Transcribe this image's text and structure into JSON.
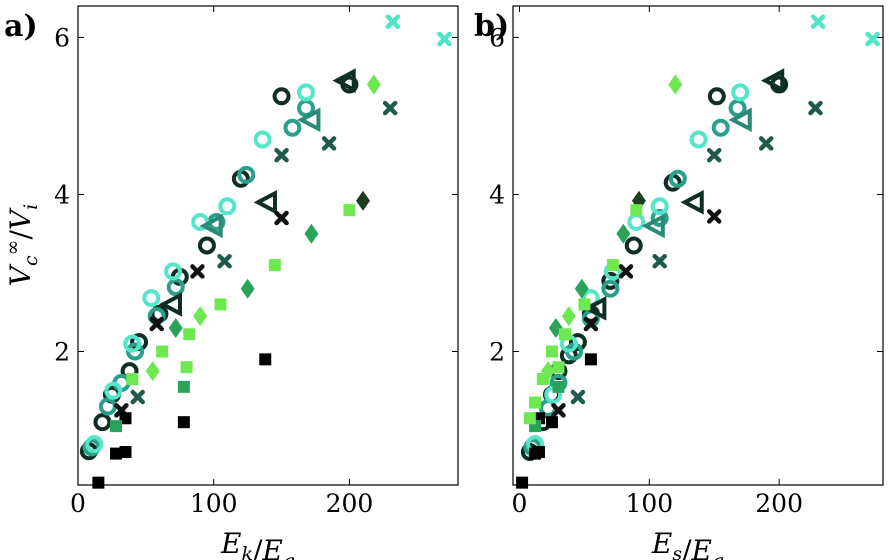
{
  "chart_data": [
    {
      "type": "scatter",
      "panel_label": "a)",
      "xlabel": "E_k/E_g",
      "ylabel": "V_c^∞/V_i",
      "xlim": [
        0,
        280
      ],
      "ylim": [
        0.3,
        6.4
      ],
      "xticks": [
        0,
        100,
        200
      ],
      "yticks": [
        2,
        4,
        6
      ],
      "grid": false,
      "series": [
        {
          "marker": "circle",
          "color": "#0f2f25",
          "points": [
            [
              8,
              0.73
            ],
            [
              18,
              1.1
            ],
            [
              25,
              1.45
            ],
            [
              38,
              1.75
            ],
            [
              45,
              2.12
            ],
            [
              60,
              2.48
            ],
            [
              75,
              2.95
            ],
            [
              95,
              3.35
            ],
            [
              120,
              4.2
            ],
            [
              150,
              5.25
            ],
            [
              200,
              5.4
            ]
          ]
        },
        {
          "marker": "circle",
          "color": "#2aa08a",
          "points": [
            [
              10,
              0.78
            ],
            [
              22,
              1.3
            ],
            [
              32,
              1.6
            ],
            [
              42,
              2.0
            ],
            [
              58,
              2.45
            ],
            [
              72,
              2.82
            ],
            [
              102,
              3.65
            ],
            [
              124,
              4.25
            ],
            [
              158,
              4.85
            ],
            [
              168,
              5.1
            ]
          ]
        },
        {
          "marker": "circle",
          "color": "#55e5c8",
          "points": [
            [
              12,
              0.82
            ],
            [
              26,
              1.5
            ],
            [
              40,
              2.1
            ],
            [
              54,
              2.68
            ],
            [
              70,
              3.02
            ],
            [
              90,
              3.65
            ],
            [
              110,
              3.85
            ],
            [
              136,
              4.7
            ],
            [
              168,
              5.3
            ]
          ]
        },
        {
          "marker": "triangle-left",
          "color": "#0f2f25",
          "points": [
            [
              70,
              2.6
            ],
            [
              140,
              3.9
            ],
            [
              198,
              5.45
            ]
          ]
        },
        {
          "marker": "triangle-left",
          "color": "#2a8a76",
          "points": [
            [
              100,
              3.6
            ],
            [
              172,
              4.95
            ]
          ]
        },
        {
          "marker": "cross",
          "color": "#111111",
          "points": [
            [
              32,
              1.25
            ],
            [
              58,
              2.35
            ],
            [
              88,
              3.02
            ],
            [
              150,
              3.7
            ]
          ]
        },
        {
          "marker": "cross",
          "color": "#1f5a4d",
          "points": [
            [
              44,
              1.42
            ],
            [
              108,
              3.15
            ],
            [
              150,
              4.5
            ],
            [
              185,
              4.65
            ],
            [
              230,
              5.1
            ]
          ]
        },
        {
          "marker": "cross",
          "color": "#50e5c5",
          "points": [
            [
              232,
              6.2
            ],
            [
              270,
              5.98
            ]
          ]
        },
        {
          "marker": "diamond",
          "color": "#2aa35a",
          "points": [
            [
              72,
              2.3
            ],
            [
              125,
              2.8
            ],
            [
              172,
              3.5
            ]
          ]
        },
        {
          "marker": "diamond",
          "color": "#6ee850",
          "points": [
            [
              55,
              1.75
            ],
            [
              90,
              2.45
            ],
            [
              218,
              5.4
            ]
          ]
        },
        {
          "marker": "diamond",
          "color": "#1d3f20",
          "points": [
            [
              210,
              3.92
            ]
          ]
        },
        {
          "marker": "square",
          "color": "#000000",
          "points": [
            [
              15,
              0.33
            ],
            [
              28,
              0.7
            ],
            [
              35,
              0.72
            ],
            [
              35,
              1.15
            ],
            [
              78,
              1.1
            ],
            [
              138,
              1.9
            ]
          ]
        },
        {
          "marker": "square",
          "color": "#2aa35a",
          "points": [
            [
              28,
              1.05
            ],
            [
              78,
              1.55
            ]
          ]
        },
        {
          "marker": "square",
          "color": "#6ee850",
          "points": [
            [
              40,
              1.65
            ],
            [
              62,
              2.0
            ],
            [
              80,
              1.8
            ],
            [
              82,
              2.22
            ],
            [
              105,
              2.6
            ],
            [
              145,
              3.1
            ],
            [
              200,
              3.8
            ]
          ]
        }
      ]
    },
    {
      "type": "scatter",
      "panel_label": "b)",
      "xlabel": "E_s/E_g",
      "ylabel": "",
      "xlim": [
        -5,
        280
      ],
      "ylim": [
        0.3,
        6.4
      ],
      "xticks": [
        0,
        100,
        200
      ],
      "yticks": [
        2,
        4,
        6
      ],
      "grid": false,
      "series": [
        {
          "marker": "circle",
          "color": "#0f2f25",
          "points": [
            [
              8,
              0.72
            ],
            [
              18,
              1.1
            ],
            [
              25,
              1.45
            ],
            [
              30,
              1.75
            ],
            [
              38,
              1.95
            ],
            [
              45,
              2.12
            ],
            [
              55,
              2.48
            ],
            [
              70,
              2.9
            ],
            [
              88,
              3.35
            ],
            [
              118,
              4.15
            ],
            [
              152,
              5.25
            ],
            [
              200,
              5.4
            ]
          ]
        },
        {
          "marker": "circle",
          "color": "#2aa08a",
          "points": [
            [
              10,
              0.78
            ],
            [
              22,
              1.28
            ],
            [
              30,
              1.6
            ],
            [
              42,
              2.0
            ],
            [
              55,
              2.42
            ],
            [
              70,
              2.8
            ],
            [
              108,
              3.7
            ],
            [
              122,
              4.2
            ],
            [
              155,
              4.85
            ],
            [
              168,
              5.1
            ]
          ]
        },
        {
          "marker": "circle",
          "color": "#55e5c8",
          "points": [
            [
              12,
              0.82
            ],
            [
              26,
              1.45
            ],
            [
              38,
              2.1
            ],
            [
              55,
              2.68
            ],
            [
              72,
              3.02
            ],
            [
              90,
              3.65
            ],
            [
              108,
              3.85
            ],
            [
              138,
              4.7
            ],
            [
              170,
              5.3
            ]
          ]
        },
        {
          "marker": "triangle-left",
          "color": "#0f2f25",
          "points": [
            [
              60,
              2.55
            ],
            [
              135,
              3.9
            ],
            [
              197,
              5.45
            ]
          ]
        },
        {
          "marker": "triangle-left",
          "color": "#2a8a76",
          "points": [
            [
              105,
              3.6
            ],
            [
              172,
              4.95
            ]
          ]
        },
        {
          "marker": "cross",
          "color": "#111111",
          "points": [
            [
              30,
              1.25
            ],
            [
              55,
              2.35
            ],
            [
              82,
              3.02
            ],
            [
              150,
              3.72
            ]
          ]
        },
        {
          "marker": "cross",
          "color": "#1f5a4d",
          "points": [
            [
              45,
              1.42
            ],
            [
              108,
              3.15
            ],
            [
              150,
              4.5
            ],
            [
              190,
              4.65
            ],
            [
              228,
              5.1
            ]
          ]
        },
        {
          "marker": "cross",
          "color": "#50e5c5",
          "points": [
            [
              230,
              6.2
            ],
            [
              272,
              5.98
            ]
          ]
        },
        {
          "marker": "diamond",
          "color": "#2aa35a",
          "points": [
            [
              28,
              2.3
            ],
            [
              48,
              2.8
            ],
            [
              80,
              3.5
            ]
          ]
        },
        {
          "marker": "diamond",
          "color": "#6ee850",
          "points": [
            [
              22,
              1.75
            ],
            [
              38,
              2.45
            ],
            [
              120,
              5.4
            ]
          ]
        },
        {
          "marker": "diamond",
          "color": "#1d3f20",
          "points": [
            [
              92,
              3.92
            ]
          ]
        },
        {
          "marker": "square",
          "color": "#000000",
          "points": [
            [
              2,
              0.33
            ],
            [
              12,
              0.7
            ],
            [
              15,
              0.72
            ],
            [
              15,
              1.15
            ],
            [
              25,
              1.1
            ],
            [
              55,
              1.9
            ]
          ]
        },
        {
          "marker": "square",
          "color": "#2aa35a",
          "points": [
            [
              12,
              1.05
            ],
            [
              30,
              1.55
            ]
          ]
        },
        {
          "marker": "square",
          "color": "#6ee850",
          "points": [
            [
              8,
              1.15
            ],
            [
              12,
              1.35
            ],
            [
              18,
              1.65
            ],
            [
              25,
              2.0
            ],
            [
              30,
              1.8
            ],
            [
              35,
              2.22
            ],
            [
              50,
              2.6
            ],
            [
              72,
              3.1
            ],
            [
              90,
              3.8
            ]
          ]
        }
      ]
    }
  ]
}
